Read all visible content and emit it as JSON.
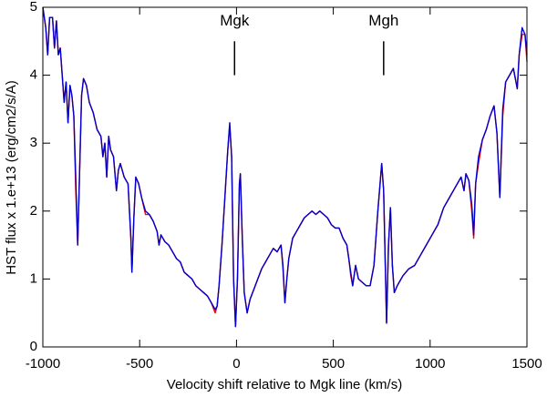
{
  "chart_data": {
    "type": "line",
    "xlabel": "Velocity shift relative to Mgk line (km/s)",
    "ylabel": "HST flux x 1.e+13 (erg/cm2/s/A)",
    "xlim": [
      -1000,
      1500
    ],
    "xticks": [
      -1000,
      -500,
      0,
      500,
      1000,
      1500
    ],
    "ylim": [
      0,
      5
    ],
    "yticks": [
      0,
      1,
      2,
      3,
      4,
      5
    ],
    "annotations": [
      {
        "text": "Mgk",
        "x": -10,
        "ymin": 4.0,
        "ymax": 4.5
      },
      {
        "text": "Mgh",
        "x": 760,
        "ymin": 4.0,
        "ymax": 4.5
      }
    ],
    "x": [
      -1000,
      -985,
      -975,
      -965,
      -950,
      -940,
      -930,
      -920,
      -910,
      -900,
      -890,
      -880,
      -870,
      -860,
      -850,
      -840,
      -830,
      -820,
      -810,
      -800,
      -790,
      -775,
      -760,
      -740,
      -720,
      -700,
      -690,
      -680,
      -670,
      -660,
      -650,
      -635,
      -620,
      -610,
      -600,
      -580,
      -560,
      -545,
      -540,
      -530,
      -520,
      -505,
      -490,
      -470,
      -450,
      -430,
      -410,
      -400,
      -390,
      -370,
      -350,
      -330,
      -310,
      -290,
      -270,
      -250,
      -230,
      -210,
      -190,
      -170,
      -150,
      -130,
      -110,
      -100,
      -90,
      -75,
      -60,
      -45,
      -35,
      -25,
      -15,
      -5,
      5,
      15,
      20,
      30,
      40,
      55,
      70,
      90,
      110,
      130,
      150,
      170,
      190,
      210,
      230,
      240,
      250,
      260,
      270,
      290,
      310,
      330,
      350,
      370,
      390,
      410,
      430,
      450,
      470,
      490,
      510,
      530,
      550,
      570,
      580,
      590,
      600,
      615,
      630,
      650,
      670,
      690,
      710,
      730,
      750,
      760,
      770,
      775,
      785,
      795,
      805,
      815,
      830,
      860,
      890,
      920,
      950,
      980,
      1010,
      1040,
      1070,
      1100,
      1130,
      1160,
      1175,
      1185,
      1200,
      1215,
      1225,
      1235,
      1250,
      1270,
      1290,
      1310,
      1330,
      1345,
      1360,
      1375,
      1390,
      1410,
      1430,
      1450,
      1460,
      1475,
      1490,
      1500
    ],
    "series": [
      {
        "color": "#ff0000",
        "values": [
          5.0,
          4.7,
          4.3,
          4.85,
          4.85,
          4.4,
          4.8,
          4.3,
          4.4,
          4.0,
          3.6,
          3.9,
          3.3,
          3.85,
          3.7,
          3.4,
          2.3,
          1.5,
          2.6,
          3.7,
          3.95,
          3.85,
          3.6,
          3.45,
          3.2,
          3.1,
          2.8,
          3.0,
          2.5,
          3.1,
          2.9,
          2.8,
          2.3,
          2.6,
          2.7,
          2.5,
          2.4,
          1.55,
          1.1,
          1.9,
          2.5,
          2.4,
          2.2,
          1.95,
          1.95,
          1.85,
          1.7,
          1.5,
          1.65,
          1.55,
          1.5,
          1.4,
          1.3,
          1.25,
          1.1,
          1.05,
          1.0,
          0.9,
          0.85,
          0.8,
          0.75,
          0.65,
          0.5,
          0.6,
          0.9,
          1.5,
          2.2,
          2.9,
          3.25,
          2.8,
          1.0,
          0.3,
          1.0,
          2.4,
          2.55,
          1.6,
          0.8,
          0.5,
          0.7,
          0.85,
          1.0,
          1.15,
          1.25,
          1.35,
          1.45,
          1.4,
          1.5,
          1.15,
          0.65,
          1.0,
          1.3,
          1.6,
          1.7,
          1.8,
          1.9,
          1.95,
          2.0,
          1.95,
          2.0,
          1.95,
          1.9,
          1.8,
          1.75,
          1.75,
          1.6,
          1.5,
          1.3,
          1.05,
          0.9,
          1.2,
          1.0,
          0.95,
          0.9,
          0.9,
          1.2,
          2.0,
          2.7,
          2.3,
          1.0,
          0.35,
          1.5,
          2.05,
          1.2,
          0.8,
          0.9,
          1.05,
          1.15,
          1.2,
          1.35,
          1.5,
          1.65,
          1.8,
          2.05,
          2.2,
          2.35,
          2.5,
          2.3,
          2.55,
          2.45,
          2.0,
          1.6,
          2.4,
          2.7,
          3.05,
          3.2,
          3.4,
          3.55,
          3.15,
          2.2,
          3.4,
          3.9,
          4.0,
          4.1,
          3.8,
          4.3,
          4.6,
          4.6,
          4.2
        ]
      },
      {
        "color": "#0000cc",
        "values": [
          5.0,
          4.7,
          4.3,
          4.85,
          4.85,
          4.4,
          4.8,
          4.3,
          4.4,
          4.0,
          3.6,
          3.9,
          3.3,
          3.85,
          3.7,
          3.4,
          2.5,
          1.5,
          2.6,
          3.7,
          3.95,
          3.85,
          3.6,
          3.45,
          3.2,
          3.1,
          2.8,
          3.0,
          2.5,
          3.1,
          2.9,
          2.8,
          2.3,
          2.6,
          2.7,
          2.5,
          2.4,
          1.6,
          1.1,
          1.9,
          2.5,
          2.4,
          2.2,
          2.0,
          1.95,
          1.85,
          1.7,
          1.5,
          1.65,
          1.55,
          1.5,
          1.4,
          1.3,
          1.25,
          1.1,
          1.05,
          1.0,
          0.9,
          0.85,
          0.8,
          0.75,
          0.65,
          0.55,
          0.6,
          0.9,
          1.5,
          2.2,
          2.9,
          3.3,
          2.8,
          1.0,
          0.3,
          1.0,
          2.4,
          2.55,
          1.6,
          0.8,
          0.5,
          0.7,
          0.85,
          1.0,
          1.15,
          1.25,
          1.35,
          1.45,
          1.4,
          1.5,
          1.2,
          0.65,
          1.0,
          1.3,
          1.6,
          1.7,
          1.8,
          1.9,
          1.95,
          2.0,
          1.95,
          2.0,
          1.95,
          1.9,
          1.8,
          1.75,
          1.75,
          1.6,
          1.5,
          1.3,
          1.1,
          0.9,
          1.2,
          1.0,
          0.95,
          0.9,
          0.9,
          1.2,
          2.0,
          2.7,
          2.3,
          1.0,
          0.35,
          1.5,
          2.05,
          1.2,
          0.8,
          0.9,
          1.05,
          1.15,
          1.2,
          1.35,
          1.5,
          1.65,
          1.8,
          2.05,
          2.2,
          2.35,
          2.5,
          2.3,
          2.55,
          2.45,
          2.1,
          1.65,
          2.4,
          2.8,
          3.05,
          3.2,
          3.4,
          3.55,
          3.15,
          2.2,
          3.5,
          3.9,
          4.0,
          4.1,
          3.8,
          4.3,
          4.7,
          4.6,
          4.3
        ]
      }
    ]
  }
}
